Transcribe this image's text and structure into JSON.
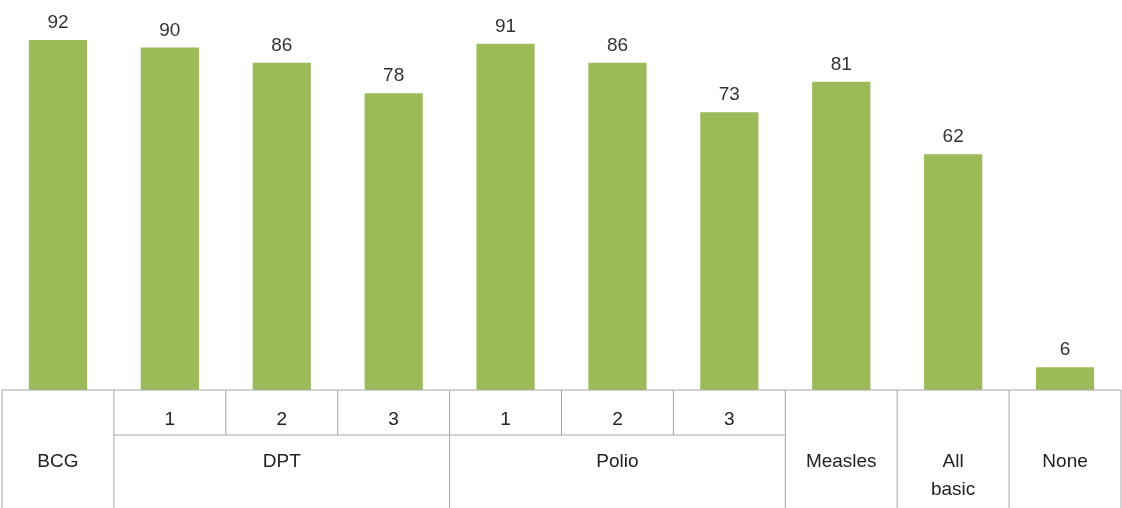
{
  "chart_data": {
    "type": "bar",
    "categories": [
      "BCG",
      "1",
      "2",
      "3",
      "1",
      "2",
      "3",
      "Measles",
      "All basic",
      "None"
    ],
    "values": [
      92,
      90,
      86,
      78,
      91,
      86,
      73,
      81,
      62,
      6
    ],
    "color": "#9bbb59",
    "data_labels": true,
    "annotations": [
      "DPT",
      "Polio"
    ]
  }
}
